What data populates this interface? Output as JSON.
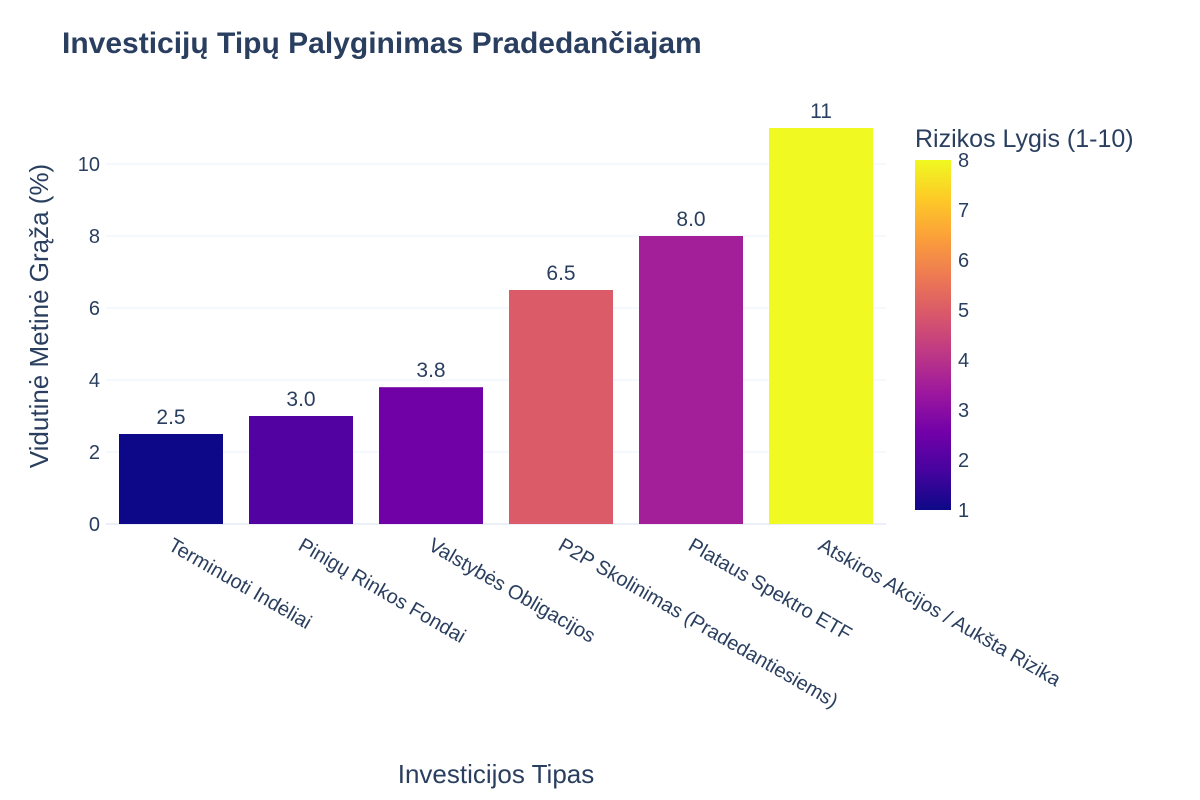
{
  "chart_data": {
    "type": "bar",
    "title": "Investicijų Tipų Palyginimas Pradedančiajam",
    "xlabel": "Investicijos Tipas",
    "ylabel": "Vidutinė Metinė Grąža (%)",
    "categories": [
      "Terminuoti Indėliai",
      "Pinigų Rinkos Fondai",
      "Valstybės Obligacijos",
      "P2P Skolinimas (Pradedantiesiems)",
      "Plataus Spektro ETF",
      "Atskiros Akcijos / Aukšta Rizika"
    ],
    "values": [
      2.5,
      3.0,
      3.8,
      6.5,
      8.0,
      11
    ],
    "value_labels": [
      "2.5",
      "3.0",
      "3.8",
      "6.5",
      "8.0",
      "11"
    ],
    "risk_levels": [
      1,
      2,
      2.5,
      5,
      3.5,
      8
    ],
    "ylim": [
      0,
      11.5
    ],
    "yticks": [
      0,
      2,
      4,
      6,
      8,
      10
    ],
    "grid": true,
    "colorbar": {
      "title": "Rizikos Lygis (1-10)",
      "range": [
        1,
        8
      ],
      "ticks": [
        1,
        2,
        3,
        4,
        5,
        6,
        7,
        8
      ],
      "colorscale": [
        "#0d0887",
        "#46039f",
        "#7201a8",
        "#9c179e",
        "#bd3786",
        "#d8576b",
        "#ed7953",
        "#fb9f3a",
        "#fdca26",
        "#f0f921"
      ]
    }
  }
}
